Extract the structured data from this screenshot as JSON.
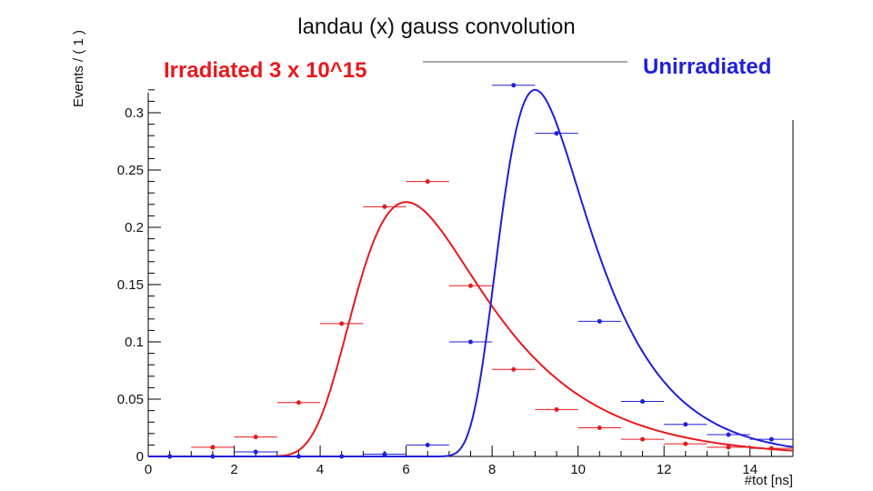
{
  "chart_data": {
    "type": "scatter",
    "title": "landau (x) gauss convolution",
    "xlabel": "#tot [ns]",
    "ylabel": "Events / ( 1 )",
    "xlim": [
      0,
      15
    ],
    "ylim": [
      0,
      0.32
    ],
    "xticks": [
      "0",
      "2",
      "4",
      "6",
      "8",
      "10",
      "12",
      "14"
    ],
    "yticks": [
      "0",
      "0.05",
      "0.1",
      "0.15",
      "0.2",
      "0.25",
      "0.3"
    ],
    "grid": false,
    "legend_placement": "top",
    "series": [
      {
        "name": "Irradiated 3 x 10^15",
        "color": "#e8191c",
        "x": [
          0.5,
          1.5,
          2.5,
          3.5,
          4.5,
          5.5,
          6.5,
          7.5,
          8.5,
          9.5,
          10.5,
          11.5,
          12.5,
          13.5,
          14.5
        ],
        "y": [
          0.0,
          0.008,
          0.017,
          0.047,
          0.116,
          0.218,
          0.24,
          0.149,
          0.076,
          0.041,
          0.025,
          0.015,
          0.011,
          0.008,
          0.007
        ],
        "fit": {
          "mpv": 6.0,
          "peak": 0.222
        }
      },
      {
        "name": "Unirradiated",
        "color": "#1f1fdc",
        "x": [
          0.5,
          1.5,
          2.5,
          3.5,
          4.5,
          5.5,
          6.5,
          7.5,
          8.5,
          9.5,
          10.5,
          11.5,
          12.5,
          13.5,
          14.5
        ],
        "y": [
          0.0,
          0.0,
          0.004,
          0.0,
          0.0,
          0.002,
          0.01,
          0.1,
          0.324,
          0.282,
          0.118,
          0.048,
          0.028,
          0.019,
          0.015
        ],
        "fit": {
          "mpv": 9.0,
          "peak": 0.32
        }
      }
    ]
  }
}
